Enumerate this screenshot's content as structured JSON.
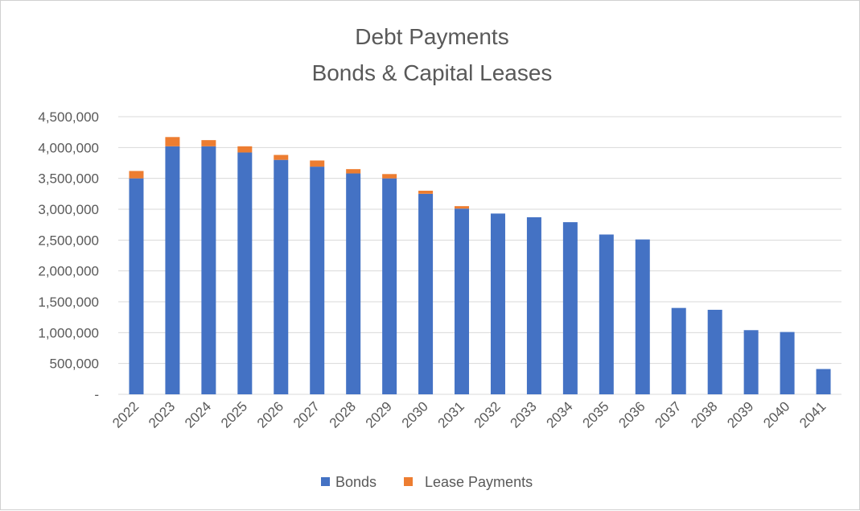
{
  "chart_data": {
    "type": "bar",
    "stacked": true,
    "title": "Debt Payments",
    "subtitle": "Bonds & Capital Leases",
    "xlabel": "",
    "ylabel": "",
    "categories": [
      "2022",
      "2023",
      "2024",
      "2025",
      "2026",
      "2027",
      "2028",
      "2029",
      "2030",
      "2031",
      "2032",
      "2033",
      "2034",
      "2035",
      "2036",
      "2037",
      "2038",
      "2039",
      "2040",
      "2041"
    ],
    "series": [
      {
        "name": "Bonds",
        "color": "#4472C4",
        "values": [
          3500000,
          4020000,
          4020000,
          3920000,
          3800000,
          3690000,
          3580000,
          3500000,
          3250000,
          3010000,
          2930000,
          2870000,
          2790000,
          2590000,
          2510000,
          1400000,
          1370000,
          1040000,
          1010000,
          410000
        ]
      },
      {
        "name": "Lease Payments",
        "color": "#ED7D31",
        "values": [
          120000,
          150000,
          100000,
          100000,
          80000,
          100000,
          70000,
          70000,
          50000,
          40000,
          0,
          0,
          0,
          0,
          0,
          0,
          0,
          0,
          0,
          0
        ]
      }
    ],
    "ylim": [
      0,
      4500000
    ],
    "yticks": [
      0,
      500000,
      1000000,
      1500000,
      2000000,
      2500000,
      3000000,
      3500000,
      4000000,
      4500000
    ],
    "ytick_labels": [
      "-",
      "500,000",
      "1,000,000",
      "1,500,000",
      "2,000,000",
      "2,500,000",
      "3,000,000",
      "3,500,000",
      "4,000,000",
      "4,500,000"
    ],
    "grid": true,
    "legend_position": "bottom"
  }
}
